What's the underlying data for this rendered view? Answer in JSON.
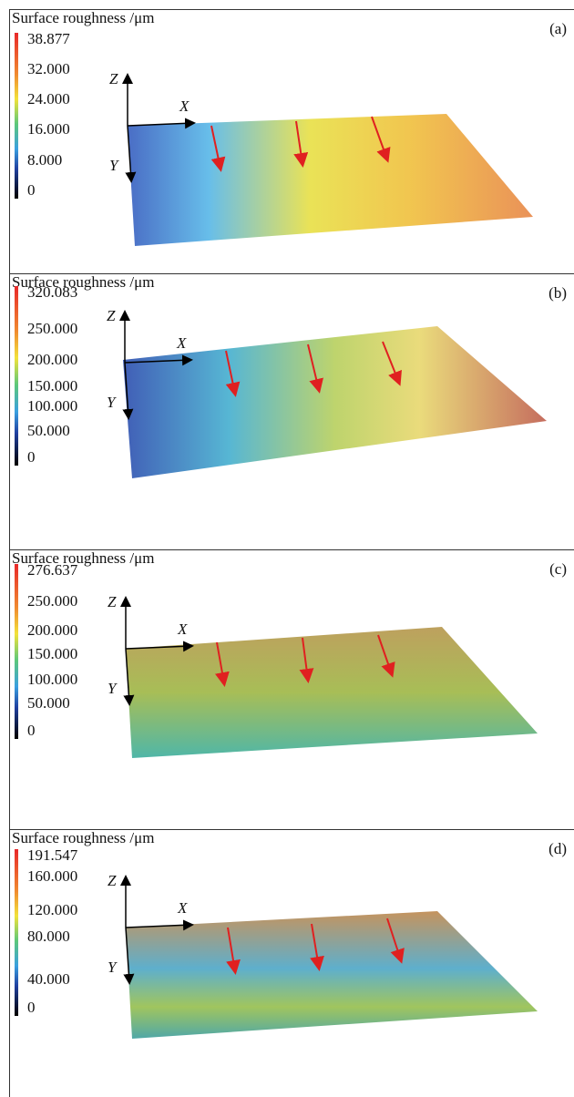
{
  "panels": [
    {
      "title": "Surface roughness /μm",
      "label": "(a)",
      "colorbar_labels": [
        "38.877",
        "32.000",
        "24.000",
        "16.000",
        "8.000",
        "0"
      ],
      "axes": {
        "z": "Z",
        "x": "X",
        "y": "Y"
      }
    },
    {
      "title": "Surface roughness /μm",
      "label": "(b)",
      "colorbar_labels": [
        "320.083",
        "250.000",
        "200.000",
        "150.000",
        "100.000",
        "50.000",
        "0"
      ],
      "axes": {
        "z": "Z",
        "x": "X",
        "y": "Y"
      }
    },
    {
      "title": "Surface roughness /μm",
      "label": "(c)",
      "colorbar_labels": [
        "276.637",
        "250.000",
        "200.000",
        "150.000",
        "100.000",
        "50.000",
        "0"
      ],
      "axes": {
        "z": "Z",
        "x": "X",
        "y": "Y"
      }
    },
    {
      "title": "Surface roughness /μm",
      "label": "(d)",
      "colorbar_labels": [
        "191.547",
        "160.000",
        "120.000",
        "80.000",
        "40.000",
        "0"
      ],
      "axes": {
        "z": "Z",
        "x": "X",
        "y": "Y"
      }
    }
  ]
}
